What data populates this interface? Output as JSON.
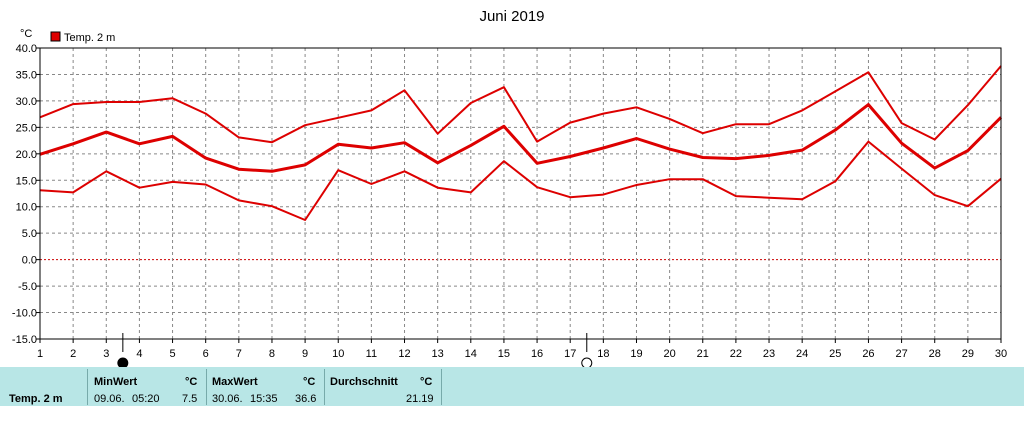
{
  "chart_data": {
    "type": "line",
    "title": "Juni 2019",
    "unit": "°C",
    "ylim": [
      -15,
      40
    ],
    "yticks": [
      "40.0",
      "35.0",
      "30.0",
      "25.0",
      "20.0",
      "15.0",
      "10.0",
      "5.0",
      "0.0",
      "-5.0",
      "-10.0",
      "-15.0"
    ],
    "x": [
      1,
      2,
      3,
      4,
      5,
      6,
      7,
      8,
      9,
      10,
      11,
      12,
      13,
      14,
      15,
      16,
      17,
      18,
      19,
      20,
      21,
      22,
      23,
      24,
      25,
      26,
      27,
      28,
      29,
      30
    ],
    "legend": "Temp. 2 m",
    "series": [
      {
        "role": "max",
        "values": [
          26.9,
          29.4,
          29.8,
          29.8,
          30.5,
          27.6,
          23.1,
          22.2,
          25.4,
          26.8,
          28.2,
          32.0,
          23.8,
          29.6,
          32.6,
          22.3,
          25.9,
          27.6,
          28.8,
          26.6,
          23.9,
          25.6,
          25.6,
          28.2,
          31.8,
          35.4,
          25.8,
          22.7,
          29.2,
          36.6
        ]
      },
      {
        "role": "mean",
        "values": [
          19.9,
          21.9,
          24.1,
          21.9,
          23.3,
          19.2,
          17.1,
          16.7,
          17.9,
          21.8,
          21.1,
          22.1,
          18.3,
          21.6,
          25.2,
          18.2,
          19.5,
          21.1,
          22.9,
          20.9,
          19.3,
          19.1,
          19.7,
          20.7,
          24.5,
          29.3,
          22.0,
          17.3,
          20.6,
          26.9
        ]
      },
      {
        "role": "min",
        "values": [
          13.1,
          12.7,
          16.7,
          13.6,
          14.7,
          14.2,
          11.2,
          10.1,
          7.5,
          16.9,
          14.3,
          16.7,
          13.6,
          12.7,
          18.6,
          13.7,
          11.8,
          12.3,
          14.1,
          15.2,
          15.2,
          12.0,
          11.7,
          11.4,
          14.8,
          22.3,
          17.2,
          12.2,
          10.1,
          15.3
        ]
      }
    ],
    "moon_phases": [
      {
        "day": 3,
        "symbol": "full-moon-icon"
      },
      {
        "day": 17,
        "symbol": "new-moon-icon"
      }
    ],
    "colors": {
      "line": "#dd0000",
      "grid": "#888888",
      "zero": "#cc0000",
      "footer": "#b8e6e6"
    }
  },
  "footer": {
    "label": "Temp. 2 m",
    "min": {
      "header": "MinWert",
      "unit": "°C",
      "date": "09.06.",
      "time": "05:20",
      "value": "7.5"
    },
    "max": {
      "header": "MaxWert",
      "unit": "°C",
      "date": "30.06.",
      "time": "15:35",
      "value": "36.6"
    },
    "avg": {
      "header": "Durchschnitt",
      "unit": "°C",
      "value": "21.19"
    }
  }
}
